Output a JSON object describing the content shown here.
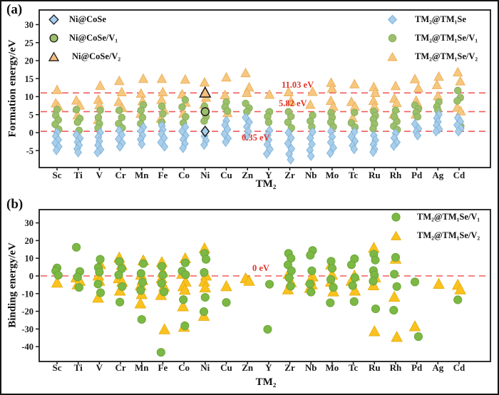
{
  "figure": {
    "panel_count": 2,
    "accent_colors": {
      "blue_diamond": "#A9CEEA",
      "green_circle_a": "#9CBF6B",
      "orange_triangle_a": "#F6C87D",
      "green_circle_b": "#7CB844",
      "orange_triangle_b": "#FBC21E",
      "ref_line_red": "#F15B5B",
      "annotation_red": "#E3342B"
    }
  },
  "chart_data": [
    {
      "id": "a",
      "type": "scatter",
      "panel_label": "(a)",
      "ylabel": "Formation energy/eV",
      "xlabel": "TM₂",
      "ylim": [
        -9.5,
        34
      ],
      "yticks": [
        -5,
        0,
        5,
        10,
        15,
        20,
        25,
        30
      ],
      "grid": false,
      "legend_position": "top-left and top-right inside",
      "categories": [
        "Sc",
        "Ti",
        "V",
        "Cr",
        "Mn",
        "Fe",
        "Co",
        "Ni",
        "Cu",
        "Zn",
        "Y",
        "Zr",
        "Nb",
        "Mo",
        "Tc",
        "Ru",
        "Rh",
        "Pd",
        "Ag",
        "Cd"
      ],
      "ref_lines": [
        {
          "label": "11.03 eV",
          "value": 11.03
        },
        {
          "label": "5.82 eV",
          "value": 5.82
        },
        {
          "label": "0.35 eV",
          "value": 0.35
        }
      ],
      "series": [
        {
          "name": "TM₂@TM₁Se",
          "marker": "diamond",
          "color": "#A9CEEA",
          "edge": "#7FB3D9",
          "points": [
            [
              0,
              -1,
              -2,
              -2.9,
              -3.9,
              -4.9
            ],
            [
              -0.6,
              -1.6,
              -2.6,
              -3.5,
              -4.5,
              -5.5
            ],
            [
              0,
              -1.2,
              -2.4,
              -3.5,
              -4.7,
              -5.5
            ],
            [
              0.6,
              -0.6,
              -1.8,
              -2.9,
              -3.9
            ],
            [
              1.5,
              0.4,
              -0.8,
              -1.9,
              -3.2
            ],
            [
              1.9,
              0.8,
              -0.4,
              -1.5,
              -2.7,
              -3.9
            ],
            [
              1.5,
              0.4,
              -0.8,
              -1.9,
              -3.1,
              -4.3
            ],
            [
              -1.0,
              -2.2,
              -3.4
            ],
            [
              3.3,
              2.1,
              0.9,
              -0.4,
              -1.6,
              -2.6
            ],
            [
              4.2,
              2.9,
              1.6,
              0.3,
              -1.0
            ],
            [
              0.6,
              -0.7,
              -2.0,
              -3.3,
              -4.6,
              -5.9
            ],
            [
              0,
              -1.5,
              -3.0,
              -4.5,
              -6.0,
              -7.5
            ],
            [
              0.2,
              -1.5,
              -3.2,
              -4.9,
              -6.5
            ],
            [
              0.3,
              -1.2,
              -2.7,
              -4.2,
              -5.7
            ],
            [
              0.2,
              -1.1,
              -2.4,
              -3.6,
              -4.6
            ],
            [
              -0.8,
              -2.1,
              -3.3,
              -4.6,
              -5.4
            ],
            [
              -0.2,
              -1.5,
              -2.7,
              -3.7
            ],
            [
              2.4,
              1.1,
              0.2,
              -0.8
            ],
            [
              5.0,
              4.0,
              3.0,
              2.0,
              1.0,
              0.3
            ],
            [
              4.1,
              3.1,
              2.1,
              1.1,
              0.3
            ]
          ]
        },
        {
          "name": "TM₂@TM₁Se/V₁",
          "marker": "circle",
          "color": "#9CBF6B",
          "edge": "#86AC58",
          "points": [
            [
              6.4,
              4.8,
              3.5,
              2.3,
              0.9
            ],
            [
              6.4,
              3.9,
              2.9,
              0.6
            ],
            [
              6.2,
              4.2,
              2.5,
              1.3
            ],
            [
              6.2,
              4.2,
              2.5,
              1.3
            ],
            [
              7.7,
              6.2,
              4.2,
              2.5
            ],
            [
              7.3,
              5.2,
              2.9
            ],
            [
              9.1,
              7.1,
              4.4,
              2.7
            ],
            [
              7.3,
              4.4,
              3.2
            ],
            [
              8.5,
              7.1,
              6.0
            ],
            [
              8.1,
              6.8,
              5.8
            ],
            [
              5.8,
              4.5,
              2.9
            ],
            [
              5.8,
              4.5,
              2.9,
              1.3
            ],
            [
              4.8,
              3.2,
              1.6
            ],
            [
              5.5,
              4.2,
              2.9,
              1.6
            ],
            [
              5.6,
              2.7,
              1.5
            ],
            [
              5.9,
              4.7,
              3.7,
              2.4,
              1.1
            ],
            [
              6.2,
              4.4,
              3.1,
              1.8,
              0.8
            ],
            [
              7.6,
              6.6,
              5.6,
              4.4
            ],
            [
              8.5,
              7.2,
              6.2
            ],
            [
              11.7,
              9.7,
              8.8,
              1.8
            ]
          ]
        },
        {
          "name": "TM₂@TM₁Se/V₂",
          "marker": "triangle",
          "color": "#F6C87D",
          "edge": "#EBAE5E",
          "points": [
            [
              11.8,
              8.1,
              7.2
            ],
            [
              8.9,
              7.5,
              4.8
            ],
            [
              13.0,
              9.1,
              7.6,
              3.5
            ],
            [
              14.3,
              11.2,
              8.5,
              6.8
            ],
            [
              14.9,
              10.8,
              8.7,
              5.2
            ],
            [
              14.9,
              11.2,
              9.1,
              6.2,
              3.9
            ],
            [
              14.7,
              10.6,
              8.3,
              5.2
            ],
            [
              13.9,
              9.7,
              7.7
            ],
            [
              15.3,
              10.4,
              5.4
            ],
            [
              16.5,
              12.5,
              11.0
            ],
            [
              10.5
            ],
            [
              11.2,
              8.7
            ],
            [
              11.3,
              7.7
            ],
            [
              13.8,
              12.2,
              8.8,
              7.2
            ],
            [
              13.4,
              8.5,
              7.2,
              4.0
            ],
            [
              12.6,
              11.0,
              8.8,
              7.2
            ],
            [
              12.9,
              9.4,
              8.2,
              5.0
            ],
            [
              14.8,
              12.3,
              8.8,
              7.9,
              5.0
            ],
            [
              15.5,
              13.2,
              10.1
            ],
            [
              16.7,
              14.2,
              6.9,
              5.9
            ]
          ]
        }
      ],
      "highlights": [
        {
          "label": "Ni@CoSe",
          "marker": "diamond",
          "element": "Ni",
          "value": 0.35,
          "color": "#A9CEEA"
        },
        {
          "label": "Ni@CoSe/V₁",
          "marker": "circle",
          "element": "Ni",
          "value": 5.82,
          "color": "#9CBF6B"
        },
        {
          "label": "Ni@CoSe/V₂",
          "marker": "triangle",
          "element": "Ni",
          "value": 11.03,
          "color": "#F4BE7E"
        }
      ]
    },
    {
      "id": "b",
      "type": "scatter",
      "panel_label": "(b)",
      "ylabel": "Binding energy/eV",
      "xlabel": "TM₂",
      "ylim": [
        -48,
        37
      ],
      "yticks": [
        -40,
        -30,
        -20,
        -10,
        0,
        10,
        20,
        30
      ],
      "grid": false,
      "legend_position": "top-right inside",
      "categories": [
        "Sc",
        "Ti",
        "V",
        "Cr",
        "Mn",
        "Fe",
        "Co",
        "Ni",
        "Cu",
        "Zn",
        "Y",
        "Zr",
        "Nb",
        "Mo",
        "Tc",
        "Ru",
        "Rh",
        "Pd",
        "Ag",
        "Cd"
      ],
      "ref_lines": [
        {
          "label": "0 eV",
          "value": 0
        }
      ],
      "series": [
        {
          "name": "TM₂@TM₁Se/V₁",
          "marker": "circle",
          "color": "#7CB844",
          "edge": "#69A437",
          "points": [
            [
              4.5,
              2.8,
              0.4
            ],
            [
              16.2,
              2.5,
              -0.6,
              -6.5
            ],
            [
              9.4,
              4.8,
              2.2,
              -4.6,
              -9.5
            ],
            [
              8.2,
              4.1,
              0.6,
              -6.0,
              -14.8
            ],
            [
              7.0,
              1.4,
              -3.6,
              -8.2,
              -24.6
            ],
            [
              5.4,
              0.5,
              -4.2,
              -9.0,
              -43.2
            ],
            [
              7.4,
              2.7,
              0.7,
              -13.4,
              -28.2
            ],
            [
              12.8,
              9.4,
              2.0,
              -12.1,
              -20.2
            ],
            [
              -15.0
            ],
            [],
            [
              -4.7,
              -30.2
            ],
            [
              12.8,
              10.0,
              6.3,
              2.9,
              -1.1,
              -5.8
            ],
            [
              14.4,
              11.7,
              2.9,
              -4.5,
              -9.1
            ],
            [
              8.3,
              4.3,
              -2.0,
              -6.5,
              -15.2
            ],
            [
              9.7,
              6.3,
              -1.0,
              -5.5,
              -14.5
            ],
            [
              12.3,
              9.0,
              3.0,
              0.5,
              -3.0,
              -18.6
            ],
            [
              10.5,
              1.0,
              -6.0,
              -19.4
            ],
            [
              -3.4,
              -34.3
            ],
            [],
            [
              -13.5
            ]
          ]
        },
        {
          "name": "TM₂@TM₁Se/V₂",
          "marker": "triangle",
          "color": "#FBC21E",
          "edge": "#E5AE0F",
          "points": [
            [
              -4.0
            ],
            [
              -1.0,
              -3.0,
              -5.0
            ],
            [
              6.5,
              0.0,
              -3.0,
              -12.5
            ],
            [
              10.2,
              6.0,
              -1.5,
              -3.5,
              -8.5
            ],
            [
              8.6,
              0.5,
              -2.5,
              -5.5,
              -10.5,
              -15.8
            ],
            [
              7.6,
              2.0,
              -1.5,
              -6.2,
              -11.0,
              -30.4
            ],
            [
              9.8,
              1.0,
              -3.4,
              -6.0,
              -8.0,
              -17.4,
              -29.0
            ],
            [
              15.4,
              0.0,
              -3.4,
              -6.7,
              -22.8
            ],
            [
              -6.0
            ],
            [
              -1.5,
              -3.0
            ],
            [],
            [
              0.9,
              -3.8,
              -7.8
            ],
            [
              -0.5,
              -2.5,
              -5.0,
              -7.0
            ],
            [
              6.3,
              0.5,
              -3.5,
              -9.0
            ],
            [
              0.0,
              -3.0,
              -8.5
            ],
            [
              15.7,
              -1.0,
              -5.5,
              -31.5
            ],
            [
              9.5,
              -12.0,
              -34.7
            ],
            [
              -28.7
            ],
            [
              -4.7
            ],
            [
              -5.2,
              -7.8
            ]
          ]
        }
      ]
    }
  ]
}
